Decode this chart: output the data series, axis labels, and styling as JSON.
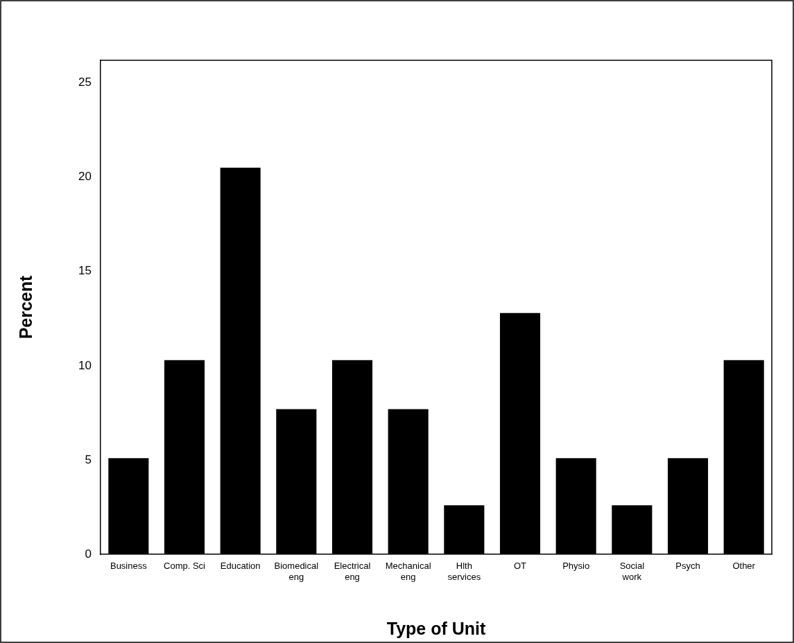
{
  "chart_data": {
    "type": "bar",
    "xlabel": "Type of Unit",
    "ylabel": "Percent",
    "categories": [
      "Business",
      "Comp. Sci",
      "Education",
      "Biomedical eng",
      "Electrical eng",
      "Mechanical eng",
      "Hlth services",
      "OT",
      "Physio",
      "Social work",
      "Psych",
      "Other"
    ],
    "values": [
      5.1,
      10.3,
      20.5,
      7.7,
      10.3,
      7.7,
      2.6,
      12.8,
      5.1,
      2.6,
      5.1,
      10.3
    ],
    "color": "#000000",
    "ylim": [
      0,
      26.2
    ],
    "yticks": [
      0,
      5,
      10,
      15,
      20,
      25
    ],
    "grid": false
  }
}
